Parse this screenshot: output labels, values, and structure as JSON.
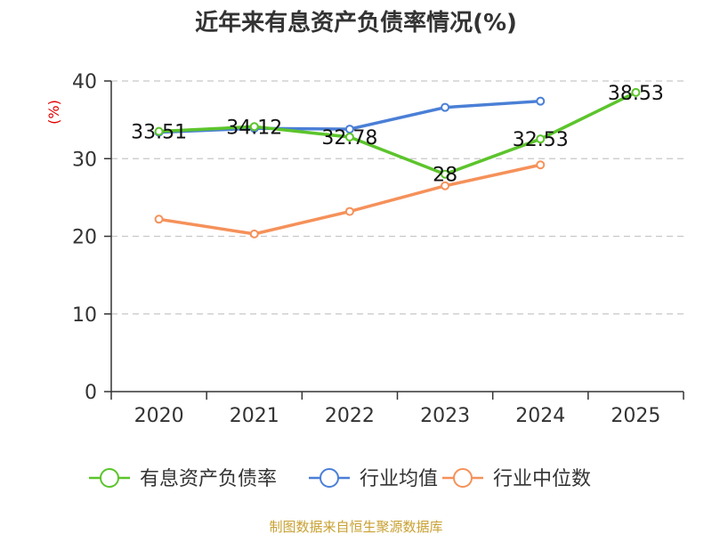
{
  "chart_data": {
    "type": "line",
    "title": "近年来有息资产负债率情况(%)",
    "ylabel": "(%)",
    "xlabel": "",
    "categories": [
      "2020",
      "2021",
      "2022",
      "2023",
      "2024",
      "2025"
    ],
    "ylim": [
      0,
      40
    ],
    "yticks": [
      0,
      10,
      20,
      30,
      40
    ],
    "grid": true,
    "legend_position": "bottom",
    "series": [
      {
        "name": "有息资产负债率",
        "color": "#5cc42c",
        "values": [
          33.51,
          34.12,
          32.78,
          28,
          32.53,
          38.53
        ],
        "labels": [
          "33.51",
          "34.12",
          "32.78",
          "28",
          "32.53",
          "38.53"
        ]
      },
      {
        "name": "行业均值",
        "color": "#4a7fd6",
        "values": [
          33.4,
          33.9,
          33.8,
          36.6,
          37.4,
          null
        ]
      },
      {
        "name": "行业中位数",
        "color": "#f5915a",
        "values": [
          22.2,
          20.3,
          23.2,
          26.5,
          29.2,
          null
        ]
      }
    ]
  },
  "source": "制图数据来自恒生聚源数据库"
}
